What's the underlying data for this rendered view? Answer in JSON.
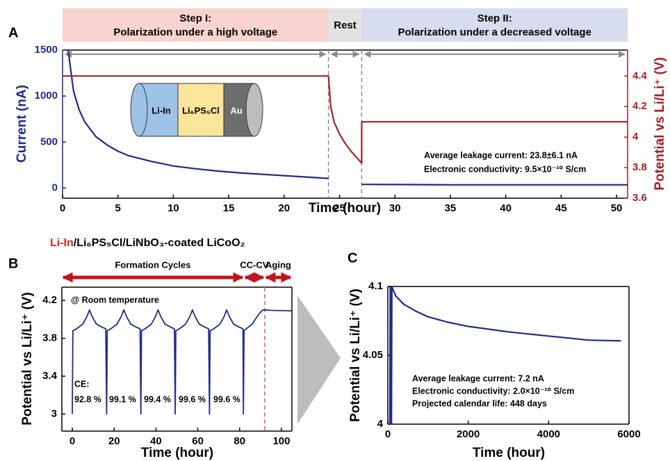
{
  "chart_data": [
    {
      "type": "line",
      "panel": "A",
      "header_bands": [
        {
          "lines": [
            "Step I:",
            "Polarization under a high voltage"
          ],
          "color": "#f8d3d0"
        },
        {
          "lines": [
            "Rest"
          ],
          "color": "#e2e2e2"
        },
        {
          "lines": [
            "Step II:",
            "Polarization under a decreased voltage"
          ],
          "color": "#d8dcef"
        }
      ],
      "vlines": [
        24,
        27
      ],
      "schematic": [
        "Li-In",
        "Li₆PS₅Cl",
        "Au"
      ],
      "xlabel": "Time (hour)",
      "ylabel": "Current (nA)",
      "y2label": "Potential vs Li/Li⁺ (V)",
      "xlim": [
        0,
        51
      ],
      "xticks": [
        0,
        5,
        10,
        15,
        20,
        25,
        30,
        35,
        40,
        45,
        50
      ],
      "ylim": [
        -110,
        1500
      ],
      "yticks": [
        0,
        500,
        1000,
        1500
      ],
      "y2lim": [
        3.6,
        4.57
      ],
      "y2ticks": [
        3.6,
        3.8,
        4,
        4.2,
        4.4
      ],
      "annotations": [
        "Average leakage current: 23.8±6.1 nA",
        "Electronic conductivity: 9.5×10⁻¹⁰ S/cm"
      ],
      "series": [
        {
          "color": "#1f2a8a",
          "axis": "y",
          "x": [
            0.5,
            1,
            1.5,
            2,
            3,
            4,
            5,
            6,
            8,
            10,
            12,
            14,
            16,
            18,
            20,
            22,
            24,
            25.5,
            27,
            30,
            35,
            40,
            45,
            51
          ],
          "values": [
            1500,
            1050,
            850,
            720,
            560,
            470,
            400,
            350,
            290,
            240,
            210,
            185,
            165,
            150,
            135,
            120,
            105,
            null,
            40,
            38,
            35,
            35,
            35,
            35
          ]
        },
        {
          "color": "#a31f24",
          "axis": "y2",
          "x": [
            0,
            24,
            24.2,
            24.5,
            25,
            25.5,
            26,
            26.5,
            27,
            27,
            51
          ],
          "values": [
            4.4,
            4.4,
            4.2,
            4.1,
            4.02,
            3.96,
            3.91,
            3.87,
            3.83,
            4.1,
            4.1
          ]
        }
      ]
    },
    {
      "type": "line",
      "panel": "B",
      "title_parts": [
        {
          "text": "Li-In",
          "color": "#e02020"
        },
        {
          "text": "/Li₆PS₅Cl/LiNbO₃-coated LiCoO₂",
          "color": "#000000"
        }
      ],
      "phases": [
        {
          "label": "Formation Cycles",
          "span": [
            -5,
            82
          ]
        },
        {
          "label": "CC-CV",
          "span": [
            82,
            92
          ]
        },
        {
          "label": "Aging",
          "span": [
            92,
            105
          ]
        }
      ],
      "vlines": [
        92
      ],
      "xlabel": "Time (hour)",
      "ylabel": "Potential vs Li/Li⁺ (V)",
      "xlim": [
        -5,
        105
      ],
      "xticks": [
        0,
        20,
        40,
        60,
        80,
        100
      ],
      "ylim": [
        2.82,
        4.34
      ],
      "yticks": [
        3,
        3.4,
        3.8,
        4.2
      ],
      "annotations": [
        "@ Room temperature"
      ],
      "ce": {
        "label": "CE:",
        "values": [
          92.8,
          99.1,
          99.4,
          99.6,
          99.6
        ],
        "value_labels": [
          "92.8 %",
          "99.1 %",
          "99.4 %",
          "99.6 %",
          "99.6 %"
        ]
      },
      "series": [
        {
          "color": "#1f2a8a",
          "axis": "y",
          "x": [
            0,
            0.3,
            2,
            5,
            7,
            8.2,
            9.5,
            11.5,
            14,
            16,
            16.4,
            16.7,
            18.4,
            21.4,
            23.4,
            24.6,
            25.9,
            27.9,
            30.4,
            32.4,
            32.8,
            33.1,
            34.8,
            37.8,
            39.8,
            41,
            42.3,
            44.3,
            46.8,
            48.8,
            49.2,
            49.5,
            51.2,
            54.2,
            56.2,
            57.4,
            58.7,
            60.7,
            63.2,
            65.2,
            65.6,
            65.9,
            67.6,
            70.6,
            72.6,
            73.8,
            75.1,
            77.1,
            79.6,
            81.6,
            81.8,
            82.1,
            86,
            89,
            91,
            92,
            95,
            105
          ],
          "values": [
            3.0,
            3.88,
            3.9,
            3.95,
            4.03,
            4.1,
            4.03,
            3.95,
            3.92,
            3.9,
            3.0,
            3.88,
            3.9,
            3.95,
            4.03,
            4.1,
            4.03,
            3.95,
            3.92,
            3.9,
            3.0,
            3.88,
            3.9,
            3.95,
            4.03,
            4.1,
            4.03,
            3.95,
            3.92,
            3.9,
            3.0,
            3.88,
            3.9,
            3.95,
            4.03,
            4.1,
            4.03,
            3.95,
            3.92,
            3.9,
            3.0,
            3.88,
            3.9,
            3.95,
            4.03,
            4.1,
            4.03,
            3.95,
            3.92,
            3.9,
            3.0,
            3.88,
            3.95,
            4.05,
            4.1,
            4.1,
            4.095,
            4.09
          ]
        }
      ]
    },
    {
      "type": "line",
      "panel": "C",
      "xlabel": "Time (hour)",
      "ylabel": "Potential vs Li/Li⁺ (V)",
      "xlim": [
        0,
        6000
      ],
      "xticks": [
        0,
        2000,
        4000,
        6000
      ],
      "ylim": [
        4,
        4.1
      ],
      "yticks": [
        4,
        4.05,
        4.1
      ],
      "annotations": [
        "Average leakage current: 7.2 nA",
        "Electronic conductivity: 2.0×10⁻¹⁰ S/cm",
        "Projected calendar life: 448 days"
      ],
      "series": [
        {
          "color": "#1f2a8a",
          "axis": "y",
          "x": [
            50,
            60,
            70,
            80,
            90,
            100,
            110,
            200,
            400,
            700,
            1000,
            1500,
            2000,
            3000,
            4000,
            5000,
            5800
          ],
          "values": [
            4.0,
            4.1,
            4.0,
            4.1,
            4.0,
            4.1,
            4.099,
            4.093,
            4.087,
            4.082,
            4.078,
            4.074,
            4.071,
            4.067,
            4.064,
            4.061,
            4.0605
          ]
        }
      ]
    }
  ]
}
